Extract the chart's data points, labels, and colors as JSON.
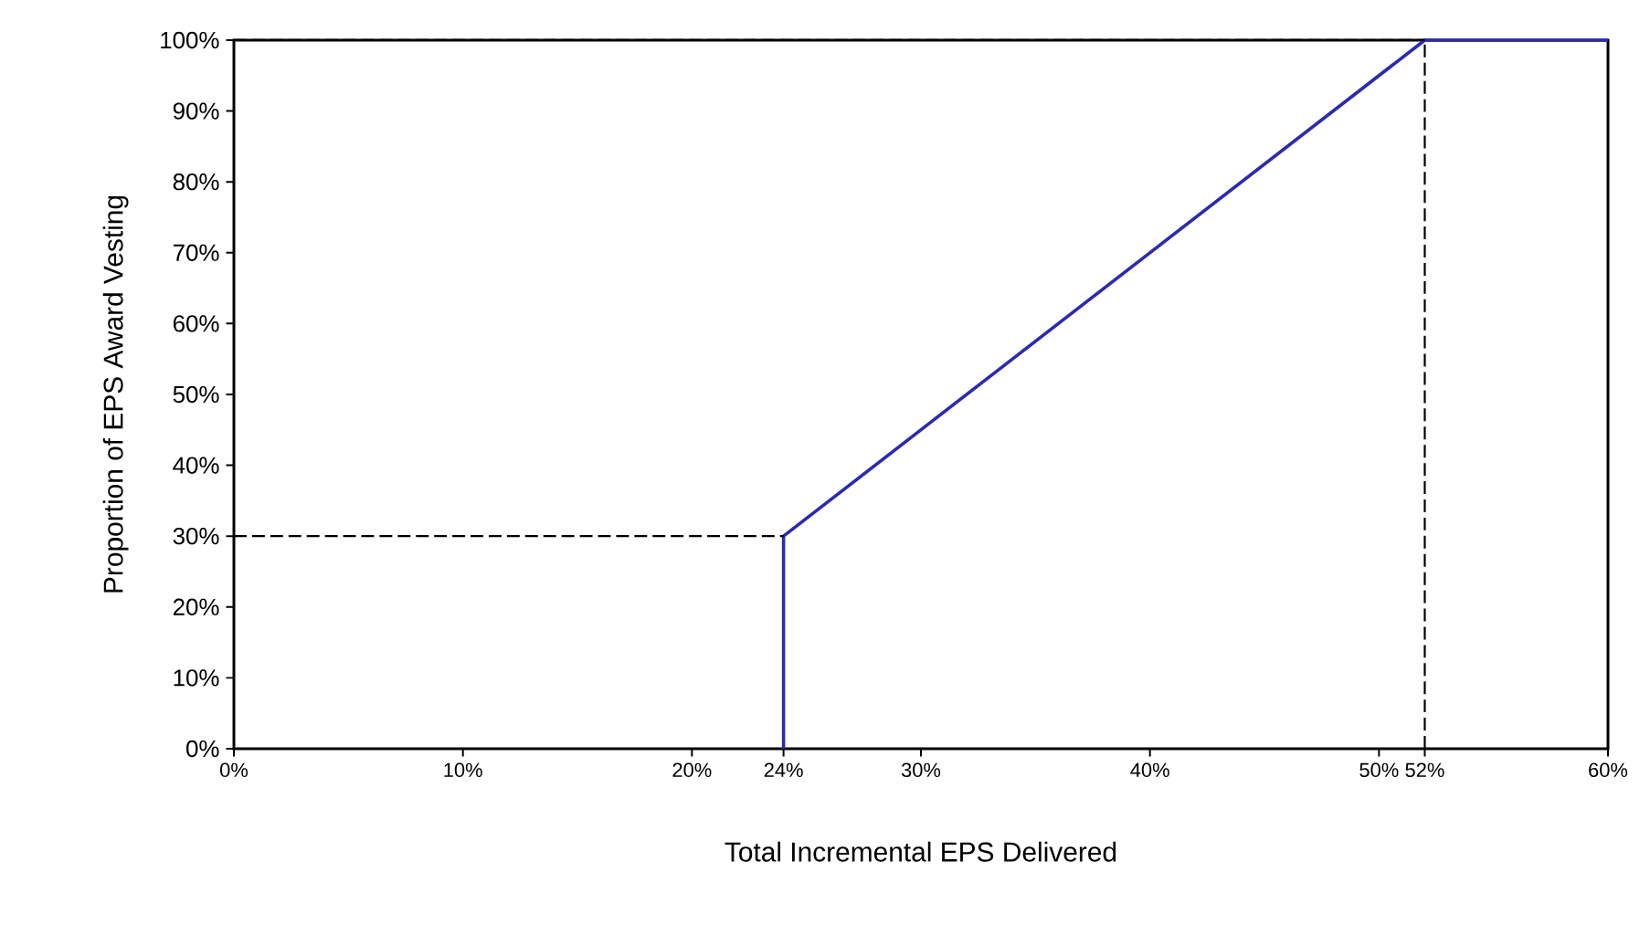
{
  "chart_data": {
    "type": "line",
    "xlabel": "Total Incremental EPS Delivered",
    "ylabel": "Proportion of EPS Award Vesting",
    "xlim": [
      0,
      60
    ],
    "ylim": [
      0,
      100
    ],
    "xticks": [
      {
        "value": 0,
        "label": "0%"
      },
      {
        "value": 10,
        "label": "10%"
      },
      {
        "value": 20,
        "label": "20%"
      },
      {
        "value": 24,
        "label": "24%"
      },
      {
        "value": 30,
        "label": "30%"
      },
      {
        "value": 40,
        "label": "40%"
      },
      {
        "value": 50,
        "label": "50%"
      },
      {
        "value": 52,
        "label": "52%"
      },
      {
        "value": 60,
        "label": "60%"
      }
    ],
    "yticks": [
      {
        "value": 0,
        "label": "0%"
      },
      {
        "value": 10,
        "label": "10%"
      },
      {
        "value": 20,
        "label": "20%"
      },
      {
        "value": 30,
        "label": "30%"
      },
      {
        "value": 40,
        "label": "40%"
      },
      {
        "value": 50,
        "label": "50%"
      },
      {
        "value": 60,
        "label": "60%"
      },
      {
        "value": 70,
        "label": "70%"
      },
      {
        "value": 80,
        "label": "80%"
      },
      {
        "value": 90,
        "label": "90%"
      },
      {
        "value": 100,
        "label": "100%"
      }
    ],
    "grid": false,
    "marker": "none",
    "series": [
      {
        "color": "#2b2bb0",
        "x": [
          24,
          24,
          52,
          60
        ],
        "values": [
          0,
          30,
          100,
          100
        ],
        "line_style": "solid"
      },
      {
        "color": "#000000",
        "x": [
          0,
          24
        ],
        "values": [
          30,
          30
        ],
        "line_style": "dashed"
      },
      {
        "color": "#000000",
        "x": [
          0,
          52
        ],
        "values": [
          100,
          100
        ],
        "line_style": "dashed"
      },
      {
        "color": "#000000",
        "x": [
          52,
          52
        ],
        "values": [
          0,
          100
        ],
        "line_style": "dashed"
      }
    ]
  }
}
